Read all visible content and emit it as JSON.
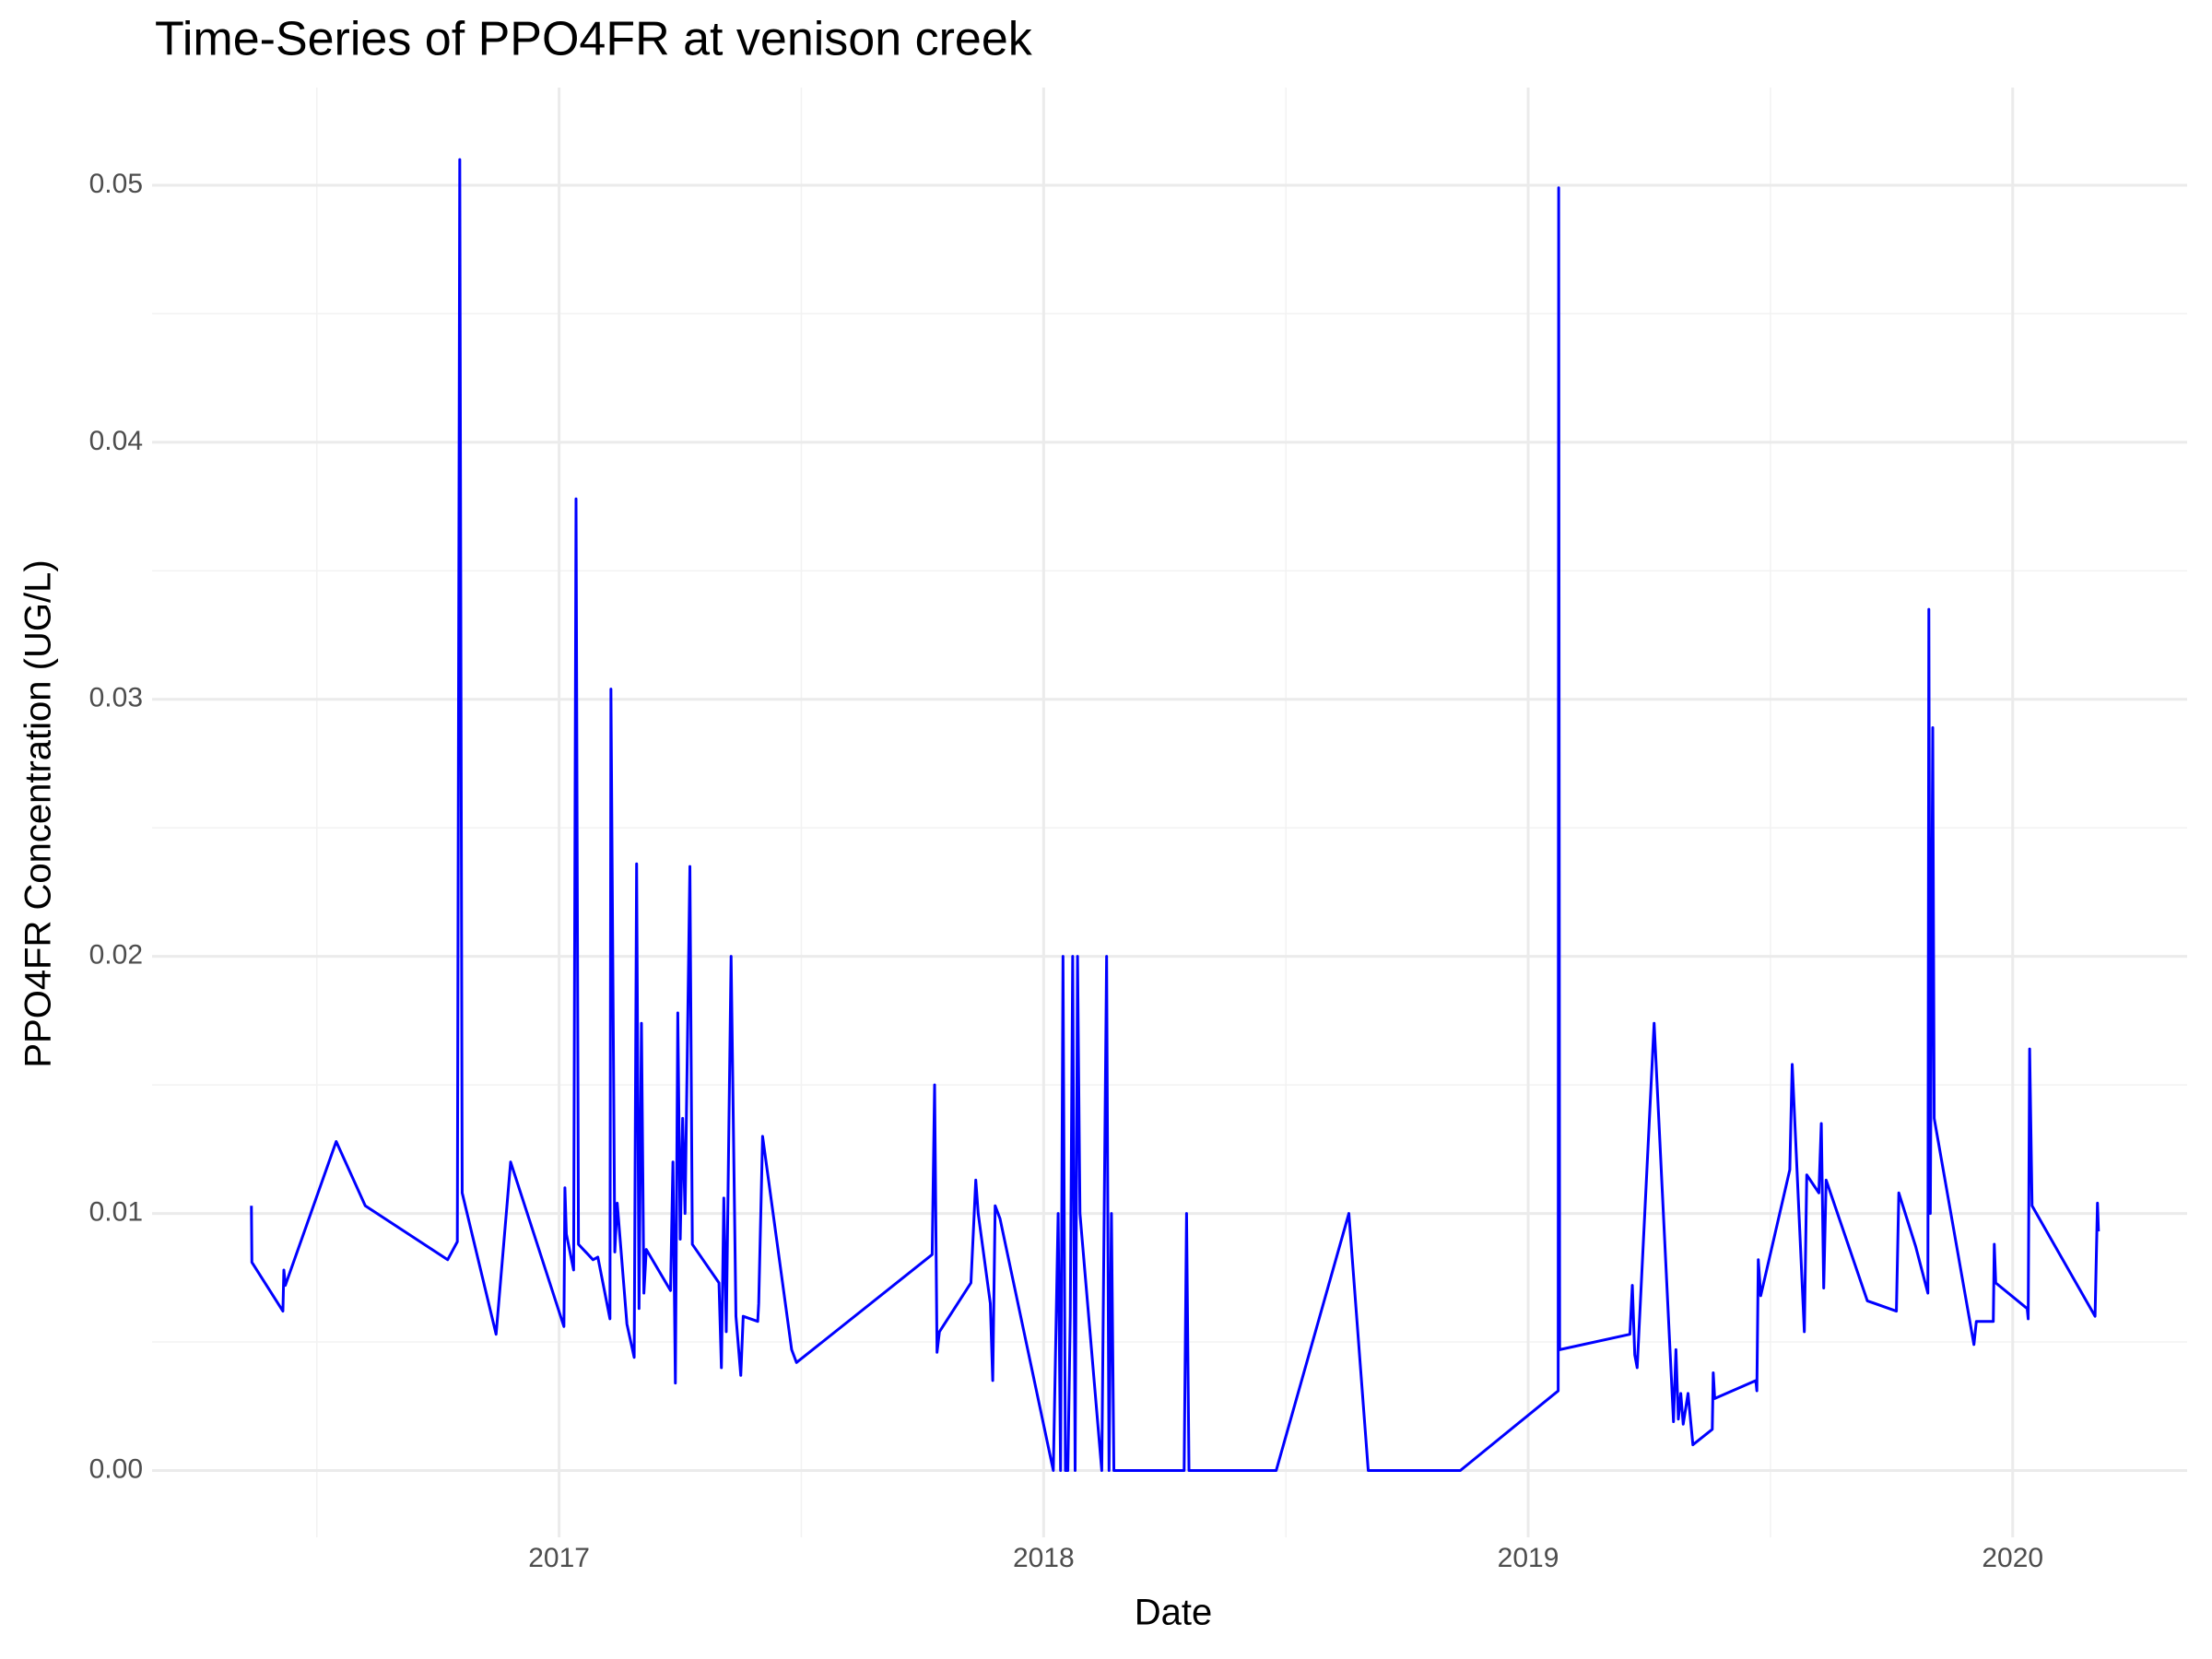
{
  "chart_data": {
    "type": "line",
    "title": "Time-Series of PPO4FR at venison creek",
    "x_label": "Date",
    "y_label": "PPO4FR Concentration (UG/L)",
    "color": "#0000ff",
    "grid": true,
    "xlim": [
      2016.16,
      2020.36
    ],
    "ylim": [
      -0.0026,
      0.0538
    ],
    "xticks": [
      2017,
      2018,
      2019,
      2020
    ],
    "yticks": [
      {
        "value": 0,
        "label": "0.00"
      },
      {
        "value": 0.01,
        "label": "0.01"
      },
      {
        "value": 0.02,
        "label": "0.02"
      },
      {
        "value": 0.03,
        "label": "0.03"
      },
      {
        "value": 0.04,
        "label": "0.04"
      },
      {
        "value": 0.05,
        "label": "0.05"
      }
    ],
    "x": [
      2016.365,
      2016.366,
      2016.43,
      2016.432,
      2016.435,
      2016.54,
      2016.6,
      2016.77,
      2016.79,
      2016.795,
      2016.8,
      2016.87,
      2016.9,
      2017.01,
      2017.012,
      2017.015,
      2017.03,
      2017.035,
      2017.04,
      2017.07,
      2017.08,
      2017.105,
      2017.107,
      2017.115,
      2017.12,
      2017.14,
      2017.155,
      2017.16,
      2017.165,
      2017.17,
      2017.175,
      2017.18,
      2017.23,
      2017.235,
      2017.24,
      2017.245,
      2017.25,
      2017.255,
      2017.26,
      2017.27,
      2017.275,
      2017.33,
      2017.335,
      2017.34,
      2017.345,
      2017.355,
      2017.365,
      2017.375,
      2017.38,
      2017.41,
      2017.412,
      2017.42,
      2017.48,
      2017.49,
      2017.77,
      2017.775,
      2017.78,
      2017.785,
      2017.85,
      2017.86,
      2017.865,
      2017.89,
      2017.895,
      2017.9,
      2017.91,
      2018.02,
      2018.03,
      2018.035,
      2018.04,
      2018.045,
      2018.05,
      2018.055,
      2018.06,
      2018.065,
      2018.07,
      2018.075,
      2018.12,
      2018.13,
      2018.135,
      2018.14,
      2018.145,
      2018.29,
      2018.295,
      2018.3,
      2018.48,
      2018.63,
      2018.67,
      2018.86,
      2019.062,
      2019.063,
      2019.065,
      2019.21,
      2019.215,
      2019.22,
      2019.225,
      2019.26,
      2019.3,
      2019.305,
      2019.31,
      2019.315,
      2019.32,
      2019.33,
      2019.34,
      2019.38,
      2019.382,
      2019.385,
      2019.47,
      2019.472,
      2019.475,
      2019.48,
      2019.54,
      2019.545,
      2019.57,
      2019.575,
      2019.6,
      2019.605,
      2019.61,
      2019.615,
      2019.7,
      2019.76,
      2019.765,
      2019.8,
      2019.825,
      2019.827,
      2019.83,
      2019.835,
      2019.838,
      2019.92,
      2019.925,
      2019.96,
      2019.962,
      2019.965,
      2020.03,
      2020.032,
      2020.035,
      2020.04,
      2020.17,
      2020.175,
      2020.177
    ],
    "values": [
      0.0103,
      0.0081,
      0.0062,
      0.0078,
      0.0072,
      0.0128,
      0.0103,
      0.0082,
      0.0089,
      0.051,
      0.0108,
      0.0053,
      0.012,
      0.0056,
      0.011,
      0.0092,
      0.0078,
      0.0378,
      0.0088,
      0.0082,
      0.0083,
      0.0059,
      0.0304,
      0.0085,
      0.0104,
      0.0057,
      0.0044,
      0.0236,
      0.0063,
      0.0174,
      0.0069,
      0.0086,
      0.007,
      0.012,
      0.0034,
      0.0178,
      0.009,
      0.0137,
      0.01,
      0.0235,
      0.0088,
      0.0073,
      0.004,
      0.0106,
      0.0054,
      0.02,
      0.006,
      0.0037,
      0.006,
      0.0058,
      0.0065,
      0.013,
      0.0047,
      0.0042,
      0.0084,
      0.015,
      0.0046,
      0.0054,
      0.0073,
      0.0113,
      0.01,
      0.0065,
      0.0035,
      0.0103,
      0.0098,
      0,
      0.01,
      0,
      0.02,
      0,
      0,
      0.006,
      0.02,
      0,
      0.02,
      0.01,
      0,
      0.02,
      0,
      0.01,
      0,
      0,
      0.01,
      0,
      0,
      0.01,
      0,
      0,
      0.0031,
      0.0499,
      0.0047,
      0.0053,
      0.0072,
      0.0045,
      0.004,
      0.0174,
      0.0019,
      0.0047,
      0.002,
      0.003,
      0.0018,
      0.003,
      0.001,
      0.0016,
      0.0038,
      0.0028,
      0.0035,
      0.0031,
      0.0082,
      0.0068,
      0.0117,
      0.0158,
      0.0054,
      0.0115,
      0.0108,
      0.0135,
      0.0071,
      0.0113,
      0.0066,
      0.0062,
      0.0108,
      0.0087,
      0.0069,
      0.0335,
      0.01,
      0.0289,
      0.0137,
      0.0049,
      0.0058,
      0.0058,
      0.0088,
      0.0073,
      0.0063,
      0.0059,
      0.0164,
      0.0103,
      0.006,
      0.0104,
      0.0093
    ]
  }
}
